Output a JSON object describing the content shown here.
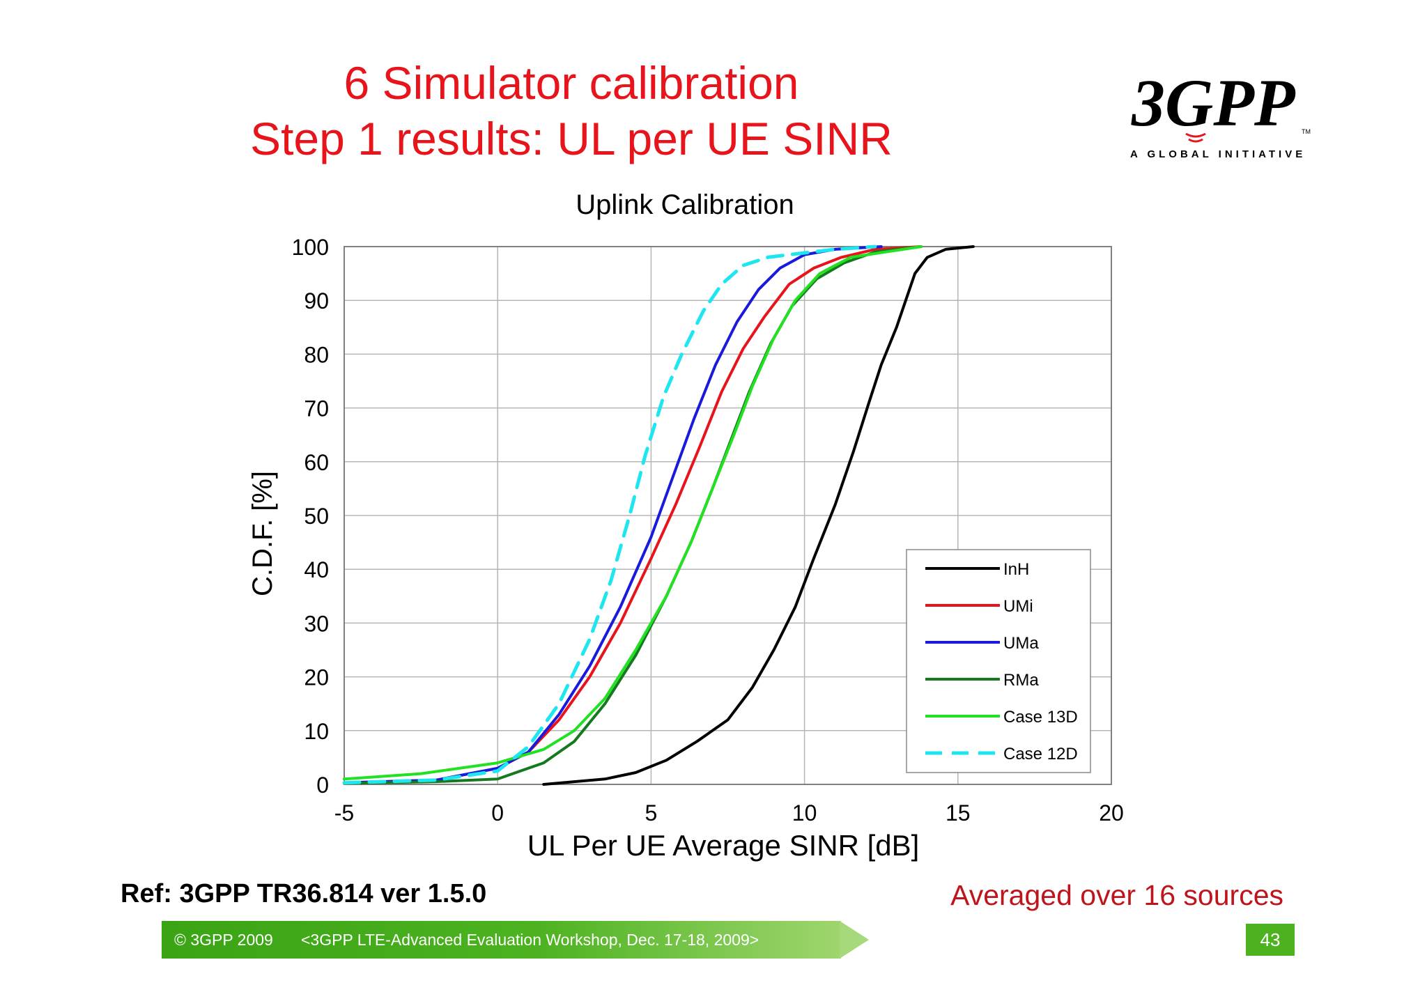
{
  "slide": {
    "title_line1": "6 Simulator calibration",
    "title_line2": "Step 1 results: UL per UE SINR",
    "reference": "Ref: 3GPP TR36.814 ver 1.5.0",
    "note": "Averaged over 16 sources",
    "footer_copyright": "© 3GPP 2009",
    "footer_event": "<3GPP LTE-Advanced Evaluation Workshop, Dec. 17-18, 2009>",
    "page_number": "43"
  },
  "logo": {
    "text": "3GPP",
    "tagline": "A GLOBAL INITIATIVE",
    "tm": "TM"
  },
  "colors": {
    "title": "#e8141b",
    "note": "#c0141c",
    "footer_green": "#4cb220"
  },
  "chart_data": {
    "type": "line",
    "title": "Uplink Calibration",
    "xlabel": "UL Per UE Average SINR [dB]",
    "ylabel": "C.D.F. [%]",
    "xlim": [
      -5,
      20
    ],
    "ylim": [
      0,
      100
    ],
    "xticks": [
      -5,
      0,
      5,
      10,
      15,
      20
    ],
    "yticks": [
      0,
      10,
      20,
      30,
      40,
      50,
      60,
      70,
      80,
      90,
      100
    ],
    "grid": true,
    "legend_position": "bottom-right",
    "series": [
      {
        "name": "InH",
        "color": "#000000",
        "dash": false,
        "width": 4,
        "points": [
          [
            1.5,
            0
          ],
          [
            2.5,
            0.5
          ],
          [
            3.5,
            1
          ],
          [
            4.5,
            2.2
          ],
          [
            5.5,
            4.5
          ],
          [
            6.5,
            8
          ],
          [
            7.5,
            12
          ],
          [
            8.3,
            18
          ],
          [
            9,
            25
          ],
          [
            9.7,
            33
          ],
          [
            10.3,
            42
          ],
          [
            11,
            52
          ],
          [
            11.6,
            62
          ],
          [
            12.1,
            71
          ],
          [
            12.5,
            78
          ],
          [
            13,
            85
          ],
          [
            13.3,
            90
          ],
          [
            13.6,
            95
          ],
          [
            14,
            98
          ],
          [
            14.6,
            99.5
          ],
          [
            15.5,
            100
          ]
        ]
      },
      {
        "name": "UMi",
        "color": "#e8141b",
        "dash": false,
        "width": 4,
        "points": [
          [
            -5,
            0.3
          ],
          [
            -2,
            0.8
          ],
          [
            0,
            3
          ],
          [
            1,
            6
          ],
          [
            2,
            12
          ],
          [
            3,
            20
          ],
          [
            4,
            30
          ],
          [
            5,
            42
          ],
          [
            5.8,
            52
          ],
          [
            6.6,
            63
          ],
          [
            7.3,
            73
          ],
          [
            8,
            81
          ],
          [
            8.7,
            87
          ],
          [
            9.5,
            93
          ],
          [
            10.3,
            96
          ],
          [
            11.2,
            98
          ],
          [
            12.3,
            99.5
          ],
          [
            13.8,
            100
          ]
        ]
      },
      {
        "name": "UMa",
        "color": "#1a1adc",
        "dash": false,
        "width": 4,
        "points": [
          [
            -5,
            0.3
          ],
          [
            -2,
            0.8
          ],
          [
            0,
            3
          ],
          [
            1,
            6
          ],
          [
            2,
            13
          ],
          [
            3,
            22
          ],
          [
            4,
            33
          ],
          [
            5,
            46
          ],
          [
            5.7,
            57
          ],
          [
            6.4,
            68
          ],
          [
            7.1,
            78
          ],
          [
            7.8,
            86
          ],
          [
            8.5,
            92
          ],
          [
            9.2,
            96
          ],
          [
            10,
            98.5
          ],
          [
            11,
            99.5
          ],
          [
            12.5,
            100
          ]
        ]
      },
      {
        "name": "RMa",
        "color": "#157a1e",
        "dash": false,
        "width": 4,
        "points": [
          [
            -5,
            0.2
          ],
          [
            -2,
            0.5
          ],
          [
            0,
            1
          ],
          [
            1.5,
            4
          ],
          [
            2.5,
            8
          ],
          [
            3.5,
            15
          ],
          [
            4.5,
            24
          ],
          [
            5.5,
            35
          ],
          [
            6.3,
            45
          ],
          [
            7,
            55
          ],
          [
            7.6,
            64
          ],
          [
            8.2,
            73
          ],
          [
            8.9,
            82
          ],
          [
            9.6,
            89
          ],
          [
            10.4,
            94
          ],
          [
            11.3,
            97
          ],
          [
            12.3,
            99
          ],
          [
            13.8,
            100
          ]
        ]
      },
      {
        "name": "Case 13D",
        "color": "#22e022",
        "dash": false,
        "width": 4,
        "points": [
          [
            -5,
            1
          ],
          [
            -2.5,
            2
          ],
          [
            0,
            4
          ],
          [
            1.5,
            6.5
          ],
          [
            2.5,
            10
          ],
          [
            3.5,
            16
          ],
          [
            4.5,
            25
          ],
          [
            5.5,
            35
          ],
          [
            6.3,
            45
          ],
          [
            7,
            55
          ],
          [
            7.7,
            65
          ],
          [
            8.3,
            74
          ],
          [
            9,
            83
          ],
          [
            9.7,
            90
          ],
          [
            10.5,
            95
          ],
          [
            11.5,
            98
          ],
          [
            13.8,
            100
          ]
        ]
      },
      {
        "name": "Case 12D",
        "color": "#1ee6f0",
        "dash": true,
        "width": 5,
        "points": [
          [
            -5,
            0.3
          ],
          [
            -2,
            0.8
          ],
          [
            0,
            2.5
          ],
          [
            1,
            7
          ],
          [
            2,
            15
          ],
          [
            3,
            27
          ],
          [
            3.7,
            38
          ],
          [
            4.3,
            50
          ],
          [
            4.8,
            61
          ],
          [
            5.4,
            72
          ],
          [
            6,
            80
          ],
          [
            6.7,
            88
          ],
          [
            7.3,
            93
          ],
          [
            8,
            96.5
          ],
          [
            8.8,
            98
          ],
          [
            9.5,
            98.5
          ],
          [
            11,
            99.5
          ],
          [
            12.3,
            100
          ]
        ]
      }
    ]
  }
}
